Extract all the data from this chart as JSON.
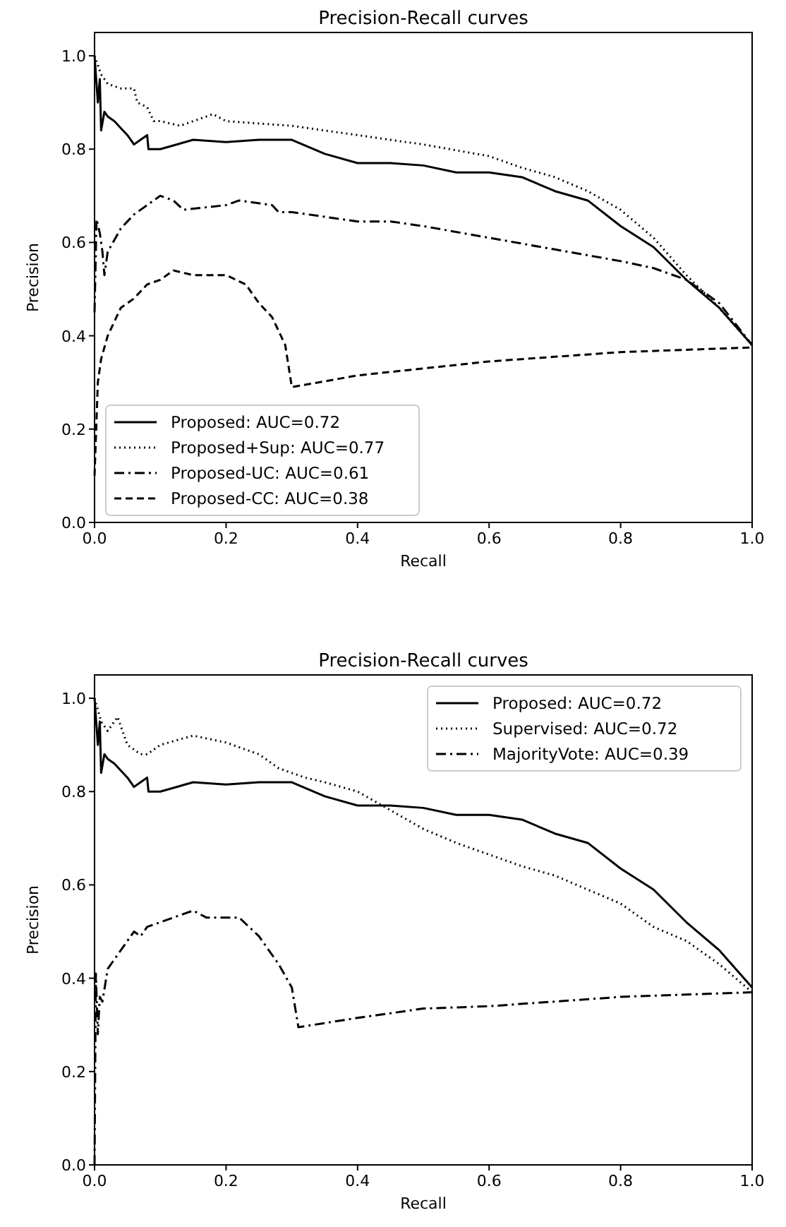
{
  "chart_data": [
    {
      "type": "line",
      "title": "Precision-Recall curves",
      "xlabel": "Recall",
      "ylabel": "Precision",
      "xlim": [
        0,
        1
      ],
      "ylim": [
        0,
        1.05
      ],
      "xticks": [
        {
          "value": 0,
          "label": "0.0"
        },
        {
          "value": 0.2,
          "label": "0.2"
        },
        {
          "value": 0.4,
          "label": "0.4"
        },
        {
          "value": 0.6,
          "label": "0.6"
        },
        {
          "value": 0.8,
          "label": "0.8"
        },
        {
          "value": 1,
          "label": "1.0"
        }
      ],
      "yticks": [
        {
          "value": 0,
          "label": "0.0"
        },
        {
          "value": 0.2,
          "label": "0.2"
        },
        {
          "value": 0.4,
          "label": "0.4"
        },
        {
          "value": 0.6,
          "label": "0.6"
        },
        {
          "value": 0.8,
          "label": "0.8"
        },
        {
          "value": 1,
          "label": "1.0"
        }
      ],
      "legend": "bottom left",
      "grid": false,
      "marker": "none",
      "series": [
        {
          "name": "Proposed: AUC=0.72",
          "color": "#000000",
          "line_style": "solid",
          "x": [
            0,
            0.005,
            0.008,
            0.01,
            0.015,
            0.02,
            0.03,
            0.05,
            0.06,
            0.07,
            0.08,
            0.082,
            0.1,
            0.15,
            0.2,
            0.25,
            0.3,
            0.35,
            0.4,
            0.45,
            0.5,
            0.55,
            0.6,
            0.65,
            0.7,
            0.75,
            0.8,
            0.85,
            0.9,
            0.95,
            1.0
          ],
          "values": [
            1.0,
            0.9,
            0.95,
            0.84,
            0.88,
            0.87,
            0.86,
            0.83,
            0.81,
            0.82,
            0.83,
            0.8,
            0.8,
            0.82,
            0.815,
            0.82,
            0.82,
            0.79,
            0.77,
            0.77,
            0.765,
            0.75,
            0.75,
            0.74,
            0.71,
            0.69,
            0.635,
            0.59,
            0.52,
            0.46,
            0.38
          ]
        },
        {
          "name": "Proposed+Sup: AUC=0.77",
          "color": "#000000",
          "line_style": "dotted",
          "x": [
            0,
            0.01,
            0.02,
            0.04,
            0.06,
            0.065,
            0.08,
            0.09,
            0.1,
            0.13,
            0.18,
            0.2,
            0.3,
            0.35,
            0.4,
            0.5,
            0.6,
            0.65,
            0.7,
            0.75,
            0.8,
            0.85,
            0.9,
            0.95,
            1.0
          ],
          "values": [
            1.0,
            0.96,
            0.94,
            0.93,
            0.93,
            0.9,
            0.89,
            0.86,
            0.86,
            0.85,
            0.875,
            0.86,
            0.85,
            0.84,
            0.83,
            0.81,
            0.785,
            0.76,
            0.74,
            0.71,
            0.67,
            0.61,
            0.53,
            0.46,
            0.38
          ]
        },
        {
          "name": "Proposed-UC: AUC=0.61",
          "color": "#000000",
          "line_style": "dashdot",
          "x": [
            0,
            0.003,
            0.008,
            0.012,
            0.015,
            0.02,
            0.04,
            0.06,
            0.08,
            0.1,
            0.12,
            0.135,
            0.2,
            0.22,
            0.27,
            0.28,
            0.3,
            0.35,
            0.4,
            0.45,
            0.5,
            0.6,
            0.7,
            0.8,
            0.85,
            0.9,
            0.95,
            1.0
          ],
          "values": [
            0.45,
            0.65,
            0.62,
            0.58,
            0.53,
            0.58,
            0.63,
            0.66,
            0.68,
            0.7,
            0.69,
            0.67,
            0.68,
            0.69,
            0.68,
            0.665,
            0.665,
            0.655,
            0.645,
            0.645,
            0.635,
            0.61,
            0.585,
            0.56,
            0.545,
            0.52,
            0.47,
            0.38
          ]
        },
        {
          "name": "Proposed-CC: AUC=0.38",
          "color": "#000000",
          "line_style": "dashed",
          "x": [
            0,
            0.005,
            0.01,
            0.02,
            0.04,
            0.06,
            0.08,
            0.1,
            0.12,
            0.15,
            0.2,
            0.23,
            0.25,
            0.27,
            0.29,
            0.3,
            0.4,
            0.5,
            0.6,
            0.7,
            0.8,
            0.9,
            1.0
          ],
          "values": [
            0.1,
            0.3,
            0.35,
            0.4,
            0.46,
            0.48,
            0.51,
            0.52,
            0.54,
            0.53,
            0.53,
            0.51,
            0.47,
            0.44,
            0.38,
            0.29,
            0.315,
            0.33,
            0.345,
            0.355,
            0.365,
            0.37,
            0.375
          ]
        }
      ]
    },
    {
      "type": "line",
      "title": "Precision-Recall curves",
      "xlabel": "Recall",
      "ylabel": "Precision",
      "xlim": [
        0,
        1
      ],
      "ylim": [
        0,
        1.05
      ],
      "xticks": [
        {
          "value": 0,
          "label": "0.0"
        },
        {
          "value": 0.2,
          "label": "0.2"
        },
        {
          "value": 0.4,
          "label": "0.4"
        },
        {
          "value": 0.6,
          "label": "0.6"
        },
        {
          "value": 0.8,
          "label": "0.8"
        },
        {
          "value": 1,
          "label": "1.0"
        }
      ],
      "yticks": [
        {
          "value": 0,
          "label": "0.0"
        },
        {
          "value": 0.2,
          "label": "0.2"
        },
        {
          "value": 0.4,
          "label": "0.4"
        },
        {
          "value": 0.6,
          "label": "0.6"
        },
        {
          "value": 0.8,
          "label": "0.8"
        },
        {
          "value": 1,
          "label": "1.0"
        }
      ],
      "legend": "top right",
      "grid": false,
      "marker": "none",
      "series": [
        {
          "name": "Proposed: AUC=0.72",
          "color": "#000000",
          "line_style": "solid",
          "x": [
            0,
            0.005,
            0.008,
            0.01,
            0.015,
            0.02,
            0.03,
            0.05,
            0.06,
            0.07,
            0.08,
            0.082,
            0.1,
            0.15,
            0.2,
            0.25,
            0.3,
            0.35,
            0.4,
            0.45,
            0.5,
            0.55,
            0.6,
            0.65,
            0.7,
            0.75,
            0.8,
            0.85,
            0.9,
            0.95,
            1.0
          ],
          "values": [
            1.0,
            0.9,
            0.95,
            0.84,
            0.88,
            0.87,
            0.86,
            0.83,
            0.81,
            0.82,
            0.83,
            0.8,
            0.8,
            0.82,
            0.815,
            0.82,
            0.82,
            0.79,
            0.77,
            0.77,
            0.765,
            0.75,
            0.75,
            0.74,
            0.71,
            0.69,
            0.635,
            0.59,
            0.52,
            0.46,
            0.38
          ]
        },
        {
          "name": "Supervised: AUC=0.72",
          "color": "#000000",
          "line_style": "dotted",
          "x": [
            0,
            0.01,
            0.02,
            0.035,
            0.05,
            0.07,
            0.08,
            0.1,
            0.15,
            0.2,
            0.25,
            0.28,
            0.32,
            0.35,
            0.4,
            0.45,
            0.5,
            0.55,
            0.6,
            0.65,
            0.7,
            0.75,
            0.8,
            0.85,
            0.9,
            0.95,
            1.0
          ],
          "values": [
            1.0,
            0.95,
            0.93,
            0.96,
            0.9,
            0.88,
            0.88,
            0.9,
            0.92,
            0.905,
            0.88,
            0.85,
            0.83,
            0.82,
            0.8,
            0.76,
            0.72,
            0.69,
            0.665,
            0.64,
            0.62,
            0.59,
            0.56,
            0.51,
            0.48,
            0.43,
            0.37
          ]
        },
        {
          "name": "MajorityVote: AUC=0.39",
          "color": "#000000",
          "line_style": "dashdot",
          "x": [
            0,
            0.002,
            0.005,
            0.008,
            0.012,
            0.02,
            0.04,
            0.05,
            0.06,
            0.07,
            0.08,
            0.1,
            0.15,
            0.17,
            0.2,
            0.22,
            0.25,
            0.28,
            0.3,
            0.31,
            0.4,
            0.5,
            0.6,
            0.7,
            0.8,
            0.9,
            1.0
          ],
          "values": [
            0,
            0.41,
            0.28,
            0.36,
            0.35,
            0.42,
            0.46,
            0.48,
            0.5,
            0.49,
            0.51,
            0.52,
            0.545,
            0.53,
            0.53,
            0.53,
            0.49,
            0.43,
            0.38,
            0.295,
            0.315,
            0.335,
            0.34,
            0.35,
            0.36,
            0.365,
            0.37
          ]
        }
      ]
    }
  ]
}
